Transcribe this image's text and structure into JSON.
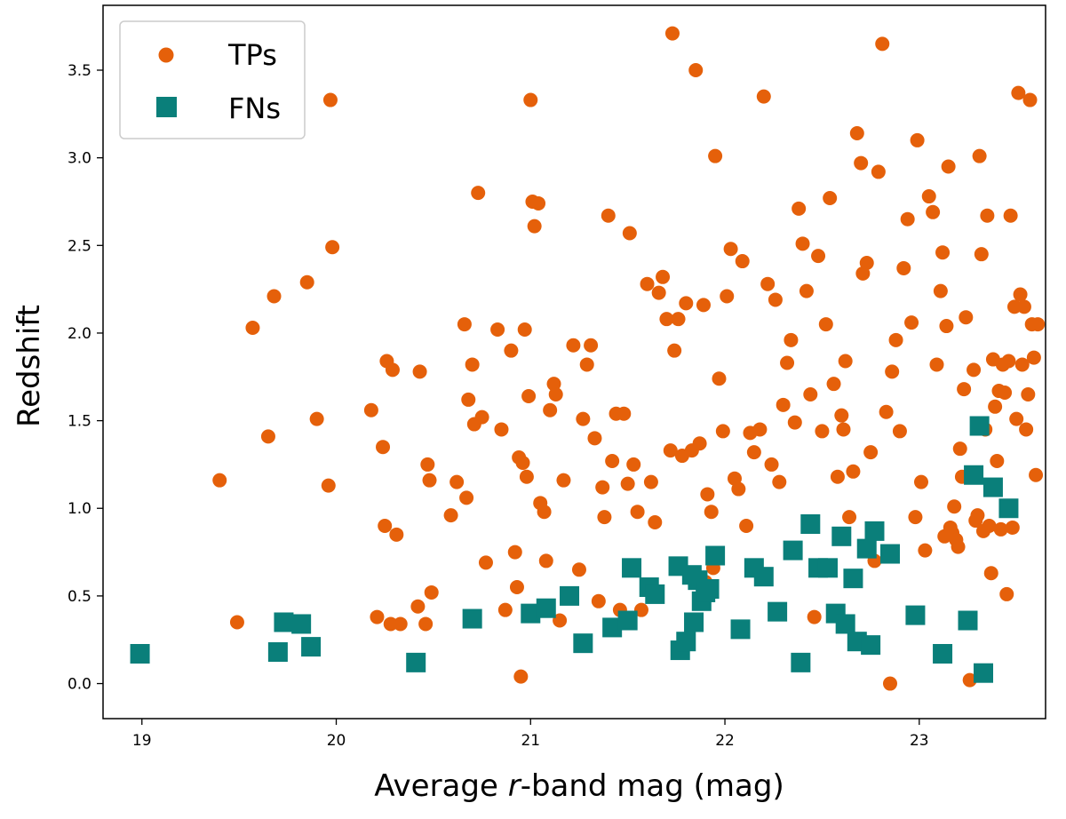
{
  "chart_data": {
    "type": "scatter",
    "title": "",
    "xlabel_parts": [
      "Average ",
      "r",
      "-band mag (mag)"
    ],
    "ylabel": "Redshift",
    "xlim": [
      18.8,
      23.65
    ],
    "ylim": [
      -0.2,
      3.87
    ],
    "xticks": [
      19,
      20,
      21,
      22,
      23
    ],
    "xtick_labels": [
      "19",
      "20",
      "21",
      "22",
      "23"
    ],
    "yticks": [
      0.0,
      0.5,
      1.0,
      1.5,
      2.0,
      2.5,
      3.0,
      3.5
    ],
    "ytick_labels": [
      "0.0",
      "0.5",
      "1.0",
      "1.5",
      "2.0",
      "2.5",
      "3.0",
      "3.5"
    ],
    "grid": false,
    "legend_position": "top-left",
    "series": [
      {
        "name": "TPs",
        "marker": "circle",
        "color": "#e5600a",
        "points": [
          [
            19.4,
            1.16
          ],
          [
            19.49,
            0.35
          ],
          [
            19.57,
            2.03
          ],
          [
            19.65,
            1.41
          ],
          [
            19.68,
            2.21
          ],
          [
            19.85,
            2.29
          ],
          [
            19.9,
            1.51
          ],
          [
            19.96,
            1.13
          ],
          [
            19.97,
            3.33
          ],
          [
            19.98,
            2.49
          ],
          [
            20.18,
            1.56
          ],
          [
            20.21,
            0.38
          ],
          [
            20.24,
            1.35
          ],
          [
            20.25,
            0.9
          ],
          [
            20.26,
            1.84
          ],
          [
            20.28,
            0.34
          ],
          [
            20.29,
            1.79
          ],
          [
            20.31,
            0.85
          ],
          [
            20.33,
            0.34
          ],
          [
            20.42,
            0.44
          ],
          [
            20.43,
            1.78
          ],
          [
            20.46,
            0.34
          ],
          [
            20.47,
            1.25
          ],
          [
            20.48,
            1.16
          ],
          [
            20.49,
            0.52
          ],
          [
            20.59,
            0.96
          ],
          [
            20.62,
            1.15
          ],
          [
            20.66,
            2.05
          ],
          [
            20.67,
            1.06
          ],
          [
            20.68,
            1.62
          ],
          [
            20.7,
            1.82
          ],
          [
            20.71,
            1.48
          ],
          [
            20.73,
            2.8
          ],
          [
            20.75,
            1.52
          ],
          [
            20.77,
            0.69
          ],
          [
            20.83,
            2.02
          ],
          [
            20.85,
            1.45
          ],
          [
            20.87,
            0.42
          ],
          [
            20.9,
            1.9
          ],
          [
            20.92,
            0.75
          ],
          [
            20.93,
            0.55
          ],
          [
            20.94,
            1.29
          ],
          [
            20.95,
            0.04
          ],
          [
            20.96,
            1.26
          ],
          [
            20.97,
            2.02
          ],
          [
            20.98,
            1.18
          ],
          [
            20.99,
            1.64
          ],
          [
            21.0,
            3.33
          ],
          [
            21.01,
            2.75
          ],
          [
            21.02,
            2.61
          ],
          [
            21.04,
            2.74
          ],
          [
            21.05,
            1.03
          ],
          [
            21.07,
            0.98
          ],
          [
            21.08,
            0.7
          ],
          [
            21.1,
            1.56
          ],
          [
            21.12,
            1.71
          ],
          [
            21.13,
            1.65
          ],
          [
            21.15,
            0.36
          ],
          [
            21.17,
            1.16
          ],
          [
            21.22,
            1.93
          ],
          [
            21.25,
            0.65
          ],
          [
            21.27,
            1.51
          ],
          [
            21.29,
            1.82
          ],
          [
            21.31,
            1.93
          ],
          [
            21.33,
            1.4
          ],
          [
            21.35,
            0.47
          ],
          [
            21.37,
            1.12
          ],
          [
            21.38,
            0.95
          ],
          [
            21.4,
            2.67
          ],
          [
            21.42,
            1.27
          ],
          [
            21.44,
            1.54
          ],
          [
            21.46,
            0.42
          ],
          [
            21.48,
            1.54
          ],
          [
            21.5,
            1.14
          ],
          [
            21.51,
            2.57
          ],
          [
            21.53,
            1.25
          ],
          [
            21.55,
            0.98
          ],
          [
            21.57,
            0.42
          ],
          [
            21.6,
            2.28
          ],
          [
            21.62,
            1.15
          ],
          [
            21.64,
            0.92
          ],
          [
            21.66,
            2.23
          ],
          [
            21.68,
            2.32
          ],
          [
            21.7,
            2.08
          ],
          [
            21.72,
            1.33
          ],
          [
            21.73,
            3.71
          ],
          [
            21.74,
            1.9
          ],
          [
            21.76,
            2.08
          ],
          [
            21.78,
            1.3
          ],
          [
            21.8,
            2.17
          ],
          [
            21.83,
            1.33
          ],
          [
            21.85,
            3.5
          ],
          [
            21.87,
            1.37
          ],
          [
            21.89,
            2.16
          ],
          [
            21.9,
            0.58
          ],
          [
            21.91,
            1.08
          ],
          [
            21.93,
            0.98
          ],
          [
            21.94,
            0.66
          ],
          [
            21.95,
            3.01
          ],
          [
            21.97,
            1.74
          ],
          [
            21.99,
            1.44
          ],
          [
            22.01,
            2.21
          ],
          [
            22.03,
            2.48
          ],
          [
            22.05,
            1.17
          ],
          [
            22.07,
            1.11
          ],
          [
            22.09,
            2.41
          ],
          [
            22.11,
            0.9
          ],
          [
            22.13,
            1.43
          ],
          [
            22.15,
            1.32
          ],
          [
            22.18,
            1.45
          ],
          [
            22.2,
            3.35
          ],
          [
            22.22,
            2.28
          ],
          [
            22.24,
            1.25
          ],
          [
            22.26,
            2.19
          ],
          [
            22.28,
            1.15
          ],
          [
            22.3,
            1.59
          ],
          [
            22.32,
            1.83
          ],
          [
            22.34,
            1.96
          ],
          [
            22.36,
            1.49
          ],
          [
            22.38,
            2.71
          ],
          [
            22.4,
            2.51
          ],
          [
            22.42,
            2.24
          ],
          [
            22.44,
            1.65
          ],
          [
            22.46,
            0.38
          ],
          [
            22.48,
            2.44
          ],
          [
            22.5,
            1.44
          ],
          [
            22.52,
            2.05
          ],
          [
            22.54,
            2.77
          ],
          [
            22.56,
            1.71
          ],
          [
            22.58,
            1.18
          ],
          [
            22.6,
            1.53
          ],
          [
            22.61,
            1.45
          ],
          [
            22.62,
            1.84
          ],
          [
            22.64,
            0.95
          ],
          [
            22.66,
            1.21
          ],
          [
            22.68,
            3.14
          ],
          [
            22.7,
            2.97
          ],
          [
            22.71,
            2.34
          ],
          [
            22.73,
            2.4
          ],
          [
            22.75,
            1.32
          ],
          [
            22.77,
            0.7
          ],
          [
            22.79,
            2.92
          ],
          [
            22.81,
            3.65
          ],
          [
            22.83,
            1.55
          ],
          [
            22.85,
            0.0
          ],
          [
            22.86,
            1.78
          ],
          [
            22.88,
            1.96
          ],
          [
            22.9,
            1.44
          ],
          [
            22.92,
            2.37
          ],
          [
            22.94,
            2.65
          ],
          [
            22.96,
            2.06
          ],
          [
            22.98,
            0.95
          ],
          [
            22.99,
            3.1
          ],
          [
            23.01,
            1.15
          ],
          [
            23.03,
            0.76
          ],
          [
            23.05,
            2.78
          ],
          [
            23.07,
            2.69
          ],
          [
            23.09,
            1.82
          ],
          [
            23.11,
            2.24
          ],
          [
            23.12,
            2.46
          ],
          [
            23.13,
            0.84
          ],
          [
            23.14,
            2.04
          ],
          [
            23.15,
            2.95
          ],
          [
            23.16,
            0.89
          ],
          [
            23.17,
            0.86
          ],
          [
            23.18,
            1.01
          ],
          [
            23.19,
            0.82
          ],
          [
            23.2,
            0.78
          ],
          [
            23.21,
            1.34
          ],
          [
            23.22,
            1.18
          ],
          [
            23.23,
            1.68
          ],
          [
            23.24,
            2.09
          ],
          [
            23.26,
            0.02
          ],
          [
            23.28,
            1.79
          ],
          [
            23.29,
            0.93
          ],
          [
            23.3,
            0.96
          ],
          [
            23.31,
            3.01
          ],
          [
            23.32,
            2.45
          ],
          [
            23.33,
            0.87
          ],
          [
            23.34,
            1.45
          ],
          [
            23.35,
            2.67
          ],
          [
            23.36,
            0.9
          ],
          [
            23.37,
            0.63
          ],
          [
            23.38,
            1.85
          ],
          [
            23.39,
            1.58
          ],
          [
            23.4,
            1.27
          ],
          [
            23.41,
            1.67
          ],
          [
            23.42,
            0.88
          ],
          [
            23.43,
            1.82
          ],
          [
            23.44,
            1.66
          ],
          [
            23.45,
            0.51
          ],
          [
            23.46,
            1.84
          ],
          [
            23.47,
            2.67
          ],
          [
            23.48,
            0.89
          ],
          [
            23.49,
            2.15
          ],
          [
            23.5,
            1.51
          ],
          [
            23.51,
            3.37
          ],
          [
            23.52,
            2.22
          ],
          [
            23.53,
            1.82
          ],
          [
            23.54,
            2.15
          ],
          [
            23.55,
            1.45
          ],
          [
            23.56,
            1.65
          ],
          [
            23.57,
            3.33
          ],
          [
            23.58,
            2.05
          ],
          [
            23.59,
            1.86
          ],
          [
            23.6,
            1.19
          ],
          [
            23.61,
            2.05
          ]
        ]
      },
      {
        "name": "FNs",
        "marker": "square",
        "color": "#0a7f7a",
        "points": [
          [
            18.99,
            0.17
          ],
          [
            19.7,
            0.18
          ],
          [
            19.73,
            0.35
          ],
          [
            19.82,
            0.34
          ],
          [
            19.87,
            0.21
          ],
          [
            20.41,
            0.12
          ],
          [
            20.7,
            0.37
          ],
          [
            21.0,
            0.4
          ],
          [
            21.08,
            0.43
          ],
          [
            21.2,
            0.5
          ],
          [
            21.27,
            0.23
          ],
          [
            21.42,
            0.32
          ],
          [
            21.5,
            0.36
          ],
          [
            21.52,
            0.66
          ],
          [
            21.61,
            0.55
          ],
          [
            21.64,
            0.51
          ],
          [
            21.76,
            0.67
          ],
          [
            21.77,
            0.19
          ],
          [
            21.8,
            0.24
          ],
          [
            21.83,
            0.62
          ],
          [
            21.84,
            0.35
          ],
          [
            21.86,
            0.59
          ],
          [
            21.88,
            0.47
          ],
          [
            21.9,
            0.52
          ],
          [
            21.92,
            0.54
          ],
          [
            21.95,
            0.73
          ],
          [
            22.08,
            0.31
          ],
          [
            22.15,
            0.66
          ],
          [
            22.2,
            0.61
          ],
          [
            22.27,
            0.41
          ],
          [
            22.35,
            0.76
          ],
          [
            22.39,
            0.12
          ],
          [
            22.44,
            0.91
          ],
          [
            22.48,
            0.66
          ],
          [
            22.53,
            0.66
          ],
          [
            22.57,
            0.4
          ],
          [
            22.6,
            0.84
          ],
          [
            22.62,
            0.34
          ],
          [
            22.66,
            0.6
          ],
          [
            22.68,
            0.24
          ],
          [
            22.73,
            0.77
          ],
          [
            22.75,
            0.22
          ],
          [
            22.77,
            0.87
          ],
          [
            22.85,
            0.74
          ],
          [
            22.98,
            0.39
          ],
          [
            23.12,
            0.17
          ],
          [
            23.25,
            0.36
          ],
          [
            23.28,
            1.19
          ],
          [
            23.31,
            1.47
          ],
          [
            23.33,
            0.06
          ],
          [
            23.38,
            1.12
          ],
          [
            23.46,
            1.0
          ]
        ]
      }
    ]
  }
}
